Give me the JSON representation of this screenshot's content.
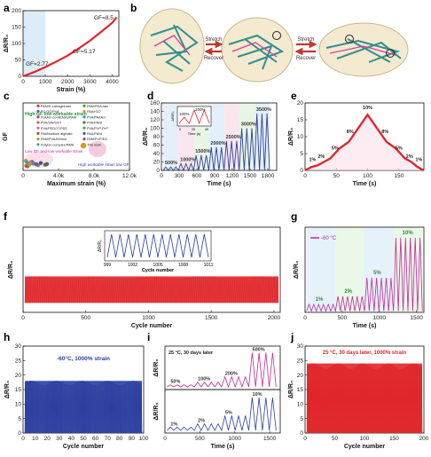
{
  "panels": {
    "a": {
      "label": "a"
    },
    "b": {
      "label": "b",
      "arrow1_top": "Stretch",
      "arrow1_bottom": "Recover",
      "arrow2_top": "Stretch",
      "arrow2_bottom": "Recover"
    },
    "c": {
      "label": "c"
    },
    "d": {
      "label": "d"
    },
    "e": {
      "label": "e"
    },
    "f": {
      "label": "f"
    },
    "g": {
      "label": "g"
    },
    "h": {
      "label": "h"
    },
    "i": {
      "label": "i"
    },
    "j": {
      "label": "j"
    }
  },
  "colors": {
    "red": "#e0262a",
    "blue": "#2c3fa0",
    "magenta": "#c02a9a",
    "green": "#2e8f3c",
    "gray": "#555555",
    "purple": "#8a2be2",
    "pink": "#f7c9dd",
    "lightblue": "#dcecf8",
    "lightgreen": "#e3f3df",
    "lightpink": "#fbe0ea"
  },
  "chart_data": [
    {
      "panel": "a",
      "type": "line",
      "xlabel": "Strain (%)",
      "ylabel": "ΔR/R₀",
      "xlim": [
        0,
        4300
      ],
      "ylim": [
        0,
        200
      ],
      "xticks": [
        0,
        1000,
        2000,
        3000,
        4000
      ],
      "yticks": [
        0,
        50,
        100,
        150,
        200
      ],
      "annotations": [
        "GF=2.77",
        "GF=5.17",
        "GF=8.5"
      ],
      "shaded_regions": [
        [
          0,
          1000
        ]
      ],
      "series": [
        {
          "x": [
            0,
            500,
            1000,
            1500,
            2000,
            2500,
            3000,
            3500,
            4000,
            4200
          ],
          "y": [
            0,
            13,
            28,
            45,
            63,
            85,
            108,
            135,
            163,
            180
          ]
        }
      ]
    },
    {
      "panel": "c",
      "type": "scatter",
      "xlabel": "Maximum strain (%)",
      "ylabel": "GF",
      "xticks_labels": [
        "0",
        "4.0k",
        "8.0k",
        "12.0k"
      ],
      "legend": [
        "PAM/K-carrageenan",
        "PAM/PDA-talc",
        "PC/GO/PVA",
        "PAA/rGO",
        "P(AAm-co-HEMA)/PANI",
        "PVA/PAAAm",
        "PVA/SW/CNT",
        "PVA/PANI",
        "PVA/PEDOT:PSS",
        "PVA/PVP-Fe³⁺",
        "PAM/sodium alginate",
        "PAA/PANI",
        "PAM/PVA/MXene",
        "PAM/PVP/EG",
        "Polyion complex/PANI",
        "This work"
      ],
      "annotations": [
        "High GF low workable strain",
        "Low GF and low workable strain",
        "High workable strain low GF"
      ],
      "points_x": [
        1000,
        900,
        2700,
        300,
        600,
        1200,
        350,
        2500,
        800,
        1700,
        500,
        2000,
        700,
        1500,
        400,
        4200
      ],
      "points_y": [
        0.6,
        0.5,
        0.4,
        0.7,
        0.3,
        0.45,
        0.25,
        0.35,
        0.55,
        0.3,
        0.2,
        0.5,
        0.35,
        0.4,
        0.6,
        5.17
      ]
    },
    {
      "panel": "d",
      "type": "line",
      "xlabel": "Time (s)",
      "ylabel": "ΔR/R₀",
      "xlim": [
        0,
        1950
      ],
      "ylim": [
        0,
        160
      ],
      "xticks": [
        0,
        300,
        600,
        900,
        1200,
        1500,
        1800
      ],
      "yticks": [
        0,
        20,
        40,
        60,
        80,
        100,
        120,
        140,
        160
      ],
      "annotations": [
        "500%",
        "1000%",
        "1500%",
        "2000%",
        "2500%",
        "3000%",
        "3500%"
      ],
      "inset": {
        "xlabel": "Time (s)",
        "ylabel": "ΔR/R₀",
        "xticks": [
          0,
          20,
          40
        ],
        "annotations": [
          "100%",
          "200%"
        ]
      },
      "steps": [
        {
          "strain": "500%",
          "peak": 8
        },
        {
          "strain": "1000%",
          "peak": 16
        },
        {
          "strain": "1500%",
          "peak": 36
        },
        {
          "strain": "2000%",
          "peak": 55
        },
        {
          "strain": "2500%",
          "peak": 70
        },
        {
          "strain": "3000%",
          "peak": 100
        },
        {
          "strain": "3500%",
          "peak": 135
        }
      ]
    },
    {
      "panel": "e",
      "type": "line",
      "xlabel": "Time (s)",
      "ylabel": "ΔR/R₀",
      "xlim": [
        0,
        190
      ],
      "ylim": [
        0,
        20
      ],
      "xticks": [
        0,
        50,
        100,
        150
      ],
      "yticks": [
        0,
        5,
        10,
        15,
        20
      ],
      "annotations": [
        "1%",
        "2%",
        "5%",
        "8%",
        "10%",
        "8%",
        "5%",
        "2%",
        "1%"
      ],
      "series": [
        {
          "x": [
            0,
            10,
            20,
            30,
            40,
            55,
            70,
            85,
            100,
            115,
            130,
            145,
            160,
            170,
            180,
            190
          ],
          "y": [
            0,
            1,
            1.5,
            2.5,
            3.5,
            6.5,
            8.5,
            12.5,
            16.5,
            12.5,
            8.5,
            6.5,
            3.5,
            2.5,
            1,
            0
          ]
        }
      ]
    },
    {
      "panel": "f",
      "type": "line",
      "xlabel": "Cycle number",
      "ylabel": "ΔR/R₀",
      "xlim": [
        0,
        2050
      ],
      "ylim": [
        -0.5,
        4
      ],
      "xticks": [
        0,
        500,
        1000,
        1500,
        2000
      ],
      "band_min": 0,
      "band_max": 1.4,
      "inset": {
        "xlabel": "Cycle number",
        "ylabel": "ΔR/R₀",
        "xticks": [
          999,
          1002,
          1005,
          1008,
          1011
        ]
      }
    },
    {
      "panel": "g",
      "type": "line",
      "xlabel": "Time (s)",
      "ylabel": "ΔR/R₀",
      "xlim": [
        0,
        1600
      ],
      "xticks": [
        0,
        500,
        1000,
        1500
      ],
      "legend": [
        "-60 °C"
      ],
      "annotations": [
        "1%",
        "2%",
        "5%",
        "10%"
      ],
      "steps": [
        {
          "strain": "1%",
          "peak": 0.3
        },
        {
          "strain": "2%",
          "peak": 0.6
        },
        {
          "strain": "5%",
          "peak": 1.3
        },
        {
          "strain": "10%",
          "peak": 2.8
        }
      ]
    },
    {
      "panel": "h",
      "type": "line",
      "xlabel": "Cycle number",
      "ylabel": "ΔR/R₀",
      "xlim": [
        0,
        100
      ],
      "ylim": [
        0,
        30
      ],
      "xticks": [
        0,
        10,
        20,
        30,
        40,
        50,
        60,
        70,
        80,
        90,
        100
      ],
      "yticks": [
        0,
        5,
        10,
        15,
        20,
        25,
        30
      ],
      "legend": [
        "-60°C, 1000% strain"
      ],
      "band_min": 0,
      "band_max": 18
    },
    {
      "panel": "i",
      "type": "line",
      "xlabel": "Time (s)",
      "ylabel": "ΔR/R₀",
      "xticks": [
        0,
        500,
        1000,
        1500
      ],
      "legend": [
        "25 °C, 30 days later"
      ],
      "top_annotations": [
        "50%",
        "100%",
        "200%",
        "500%"
      ],
      "bottom_annotations": [
        "1%",
        "2%",
        "5%",
        "10%"
      ],
      "top_steps": [
        0.3,
        0.7,
        1.5,
        5
      ],
      "bottom_steps": [
        0.2,
        0.4,
        0.9,
        2
      ]
    },
    {
      "panel": "j",
      "type": "line",
      "xlabel": "Cycle number",
      "ylabel": "ΔR/R₀",
      "xlim": [
        0,
        200
      ],
      "ylim": [
        0,
        30
      ],
      "xticks": [
        0,
        50,
        100,
        150,
        200
      ],
      "yticks": [
        0,
        5,
        10,
        15,
        20,
        25,
        30
      ],
      "legend": [
        "25 °C, 30 days later, 1000% strain"
      ],
      "band_min": 0,
      "band_max": 24
    }
  ]
}
